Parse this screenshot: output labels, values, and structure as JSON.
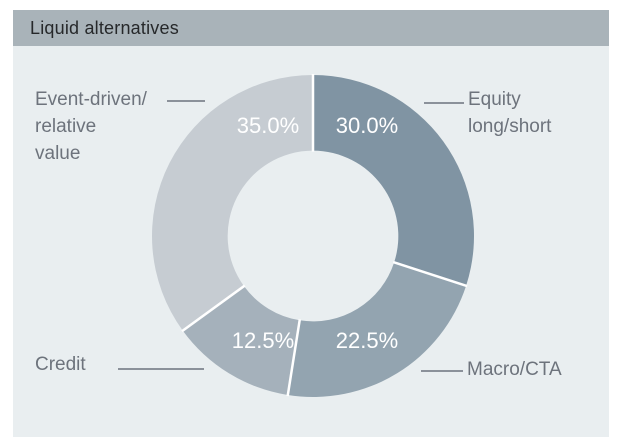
{
  "header": {
    "title": "Liquid alternatives"
  },
  "colors": {
    "page_background": "#ffffff",
    "header_background": "#a9b3b9",
    "header_text": "#26282a",
    "panel_background": "#e9eef0",
    "callout_text": "#6d737c",
    "leader_line": "#8b919a"
  },
  "chart_data": {
    "type": "pie",
    "subtype": "donut",
    "title": "Liquid alternatives",
    "direction": "clockwise",
    "start_angle_deg": 0,
    "donut_hole_ratio": 0.53,
    "divider_color": "#ffffff",
    "value_label_color": "#ffffff",
    "legend_position": "callouts-around-chart",
    "segments": [
      {
        "label": "Equity long/short",
        "value": 30.0,
        "display": "30.0%",
        "color": "#8094a3"
      },
      {
        "label": "Macro/CTA",
        "value": 22.5,
        "display": "22.5%",
        "color": "#93a4b0"
      },
      {
        "label": "Credit",
        "value": 12.5,
        "display": "12.5%",
        "color": "#a5b1bb"
      },
      {
        "label": "Event-driven/relative value",
        "value": 35.0,
        "display": "35.0%",
        "color": "#c6ccd2"
      }
    ]
  },
  "callouts": {
    "event_driven": {
      "line1": "Event-driven/",
      "line2": "relative",
      "line3": "value"
    },
    "equity": {
      "line1": "Equity",
      "line2": "long/short"
    },
    "credit": {
      "line1": "Credit"
    },
    "macro": {
      "line1": "Macro/CTA"
    }
  }
}
